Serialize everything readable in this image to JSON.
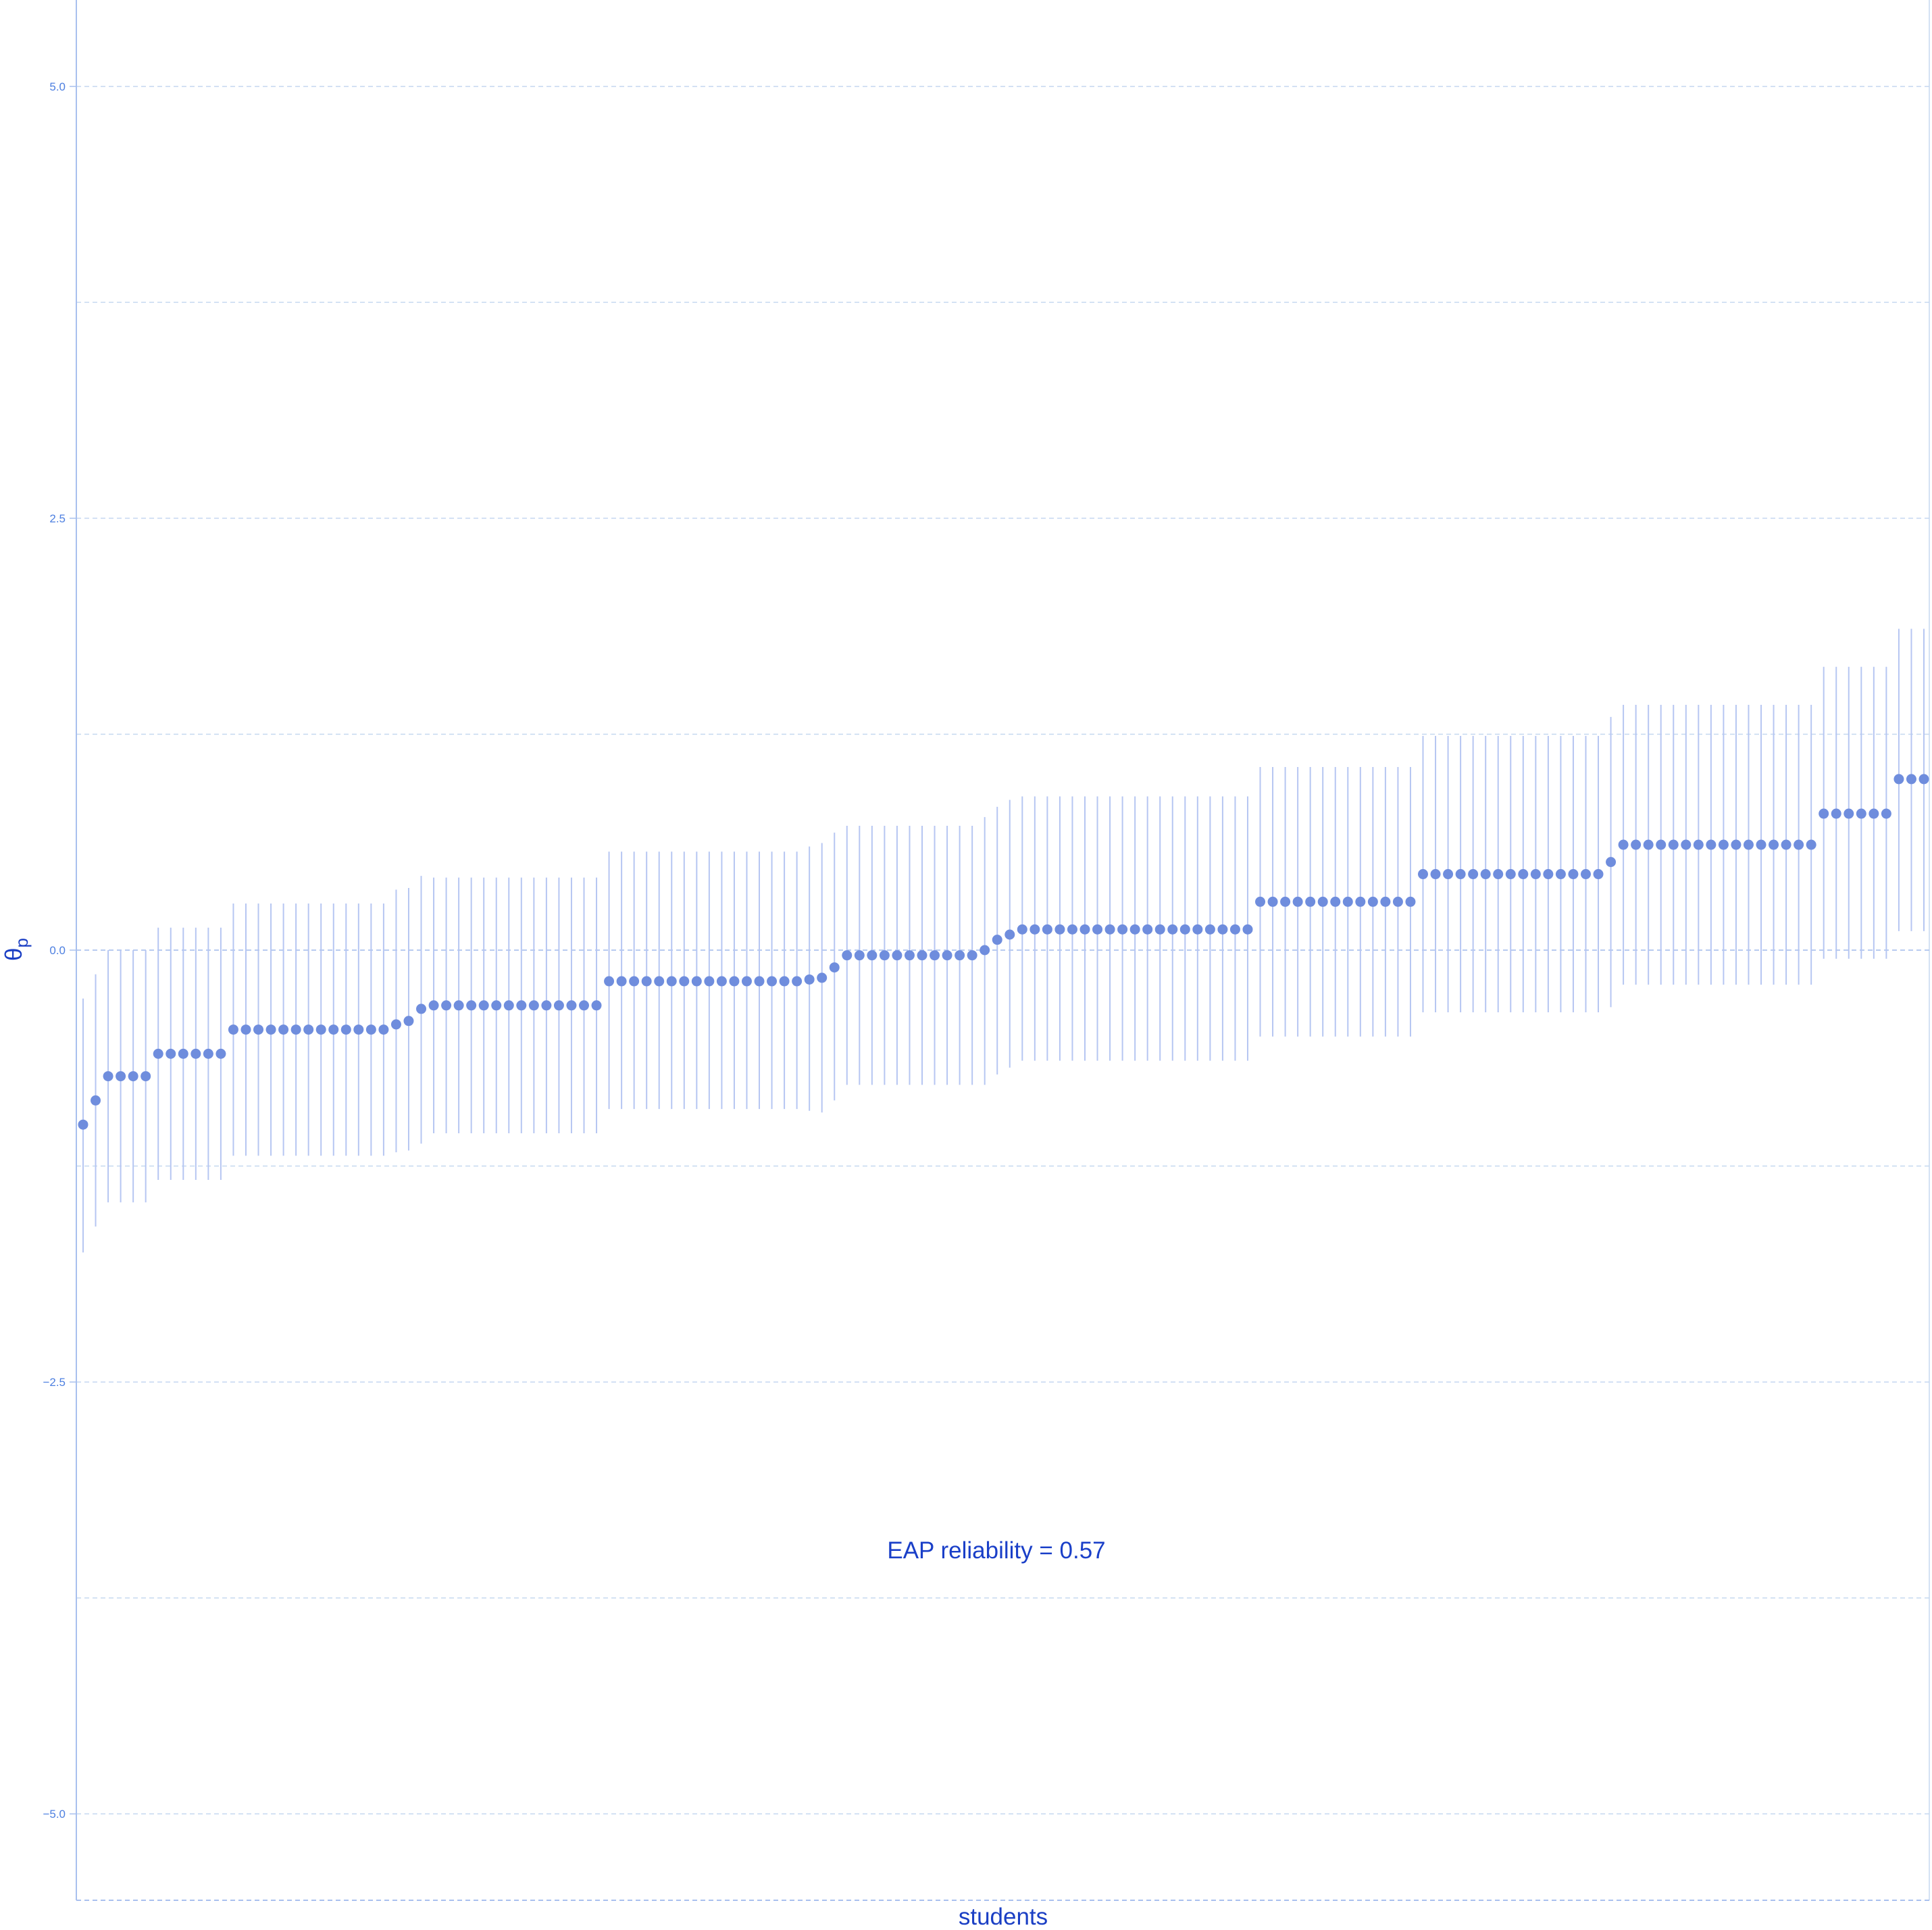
{
  "chart_data": {
    "type": "scatter",
    "xlabel": "students",
    "ylabel_base": "θ",
    "ylabel_sub": "p",
    "annotation": "EAP reliability = 0.57",
    "ylim": [
      -5.5,
      5.5
    ],
    "yticks": [
      -5.0,
      -2.5,
      0.0,
      2.5,
      5.0
    ],
    "ytick_labels": [
      "−5.0",
      "−2.5",
      "0.0",
      "2.5",
      "5.0"
    ],
    "grid": true,
    "colors": {
      "point": "#6f8ddd",
      "errorbar": "#b6c6f2",
      "grid": "#c5d8f0",
      "axis": "#a9c0ee",
      "tick_text": "#4d7fe0",
      "title_text": "#1b3fc4",
      "annotation_text": "#1a3fc8"
    },
    "groups": [
      {
        "count": 1,
        "theta": -1.01,
        "lower": -1.75,
        "upper": -0.28
      },
      {
        "count": 1,
        "theta": -0.87,
        "lower": -1.6,
        "upper": -0.14
      },
      {
        "count": 4,
        "theta": -0.73,
        "lower": -1.46,
        "upper": 0.0
      },
      {
        "count": 6,
        "theta": -0.6,
        "lower": -1.33,
        "upper": 0.13
      },
      {
        "count": 13,
        "theta": -0.46,
        "lower": -1.19,
        "upper": 0.27
      },
      {
        "count": 1,
        "theta": -0.43,
        "lower": -1.17,
        "upper": 0.35
      },
      {
        "count": 1,
        "theta": -0.41,
        "lower": -1.16,
        "upper": 0.36
      },
      {
        "count": 1,
        "theta": -0.34,
        "lower": -1.12,
        "upper": 0.43
      },
      {
        "count": 14,
        "theta": -0.32,
        "lower": -1.06,
        "upper": 0.42
      },
      {
        "count": 16,
        "theta": -0.18,
        "lower": -0.92,
        "upper": 0.57
      },
      {
        "count": 1,
        "theta": -0.17,
        "lower": -0.93,
        "upper": 0.6
      },
      {
        "count": 1,
        "theta": -0.16,
        "lower": -0.94,
        "upper": 0.62
      },
      {
        "count": 1,
        "theta": -0.1,
        "lower": -0.87,
        "upper": 0.68
      },
      {
        "count": 11,
        "theta": -0.03,
        "lower": -0.78,
        "upper": 0.72
      },
      {
        "count": 1,
        "theta": 0.0,
        "lower": -0.78,
        "upper": 0.77
      },
      {
        "count": 1,
        "theta": 0.06,
        "lower": -0.72,
        "upper": 0.83
      },
      {
        "count": 1,
        "theta": 0.09,
        "lower": -0.68,
        "upper": 0.87
      },
      {
        "count": 19,
        "theta": 0.12,
        "lower": -0.64,
        "upper": 0.89
      },
      {
        "count": 13,
        "theta": 0.28,
        "lower": -0.5,
        "upper": 1.06
      },
      {
        "count": 15,
        "theta": 0.44,
        "lower": -0.36,
        "upper": 1.24
      },
      {
        "count": 1,
        "theta": 0.51,
        "lower": -0.33,
        "upper": 1.35
      },
      {
        "count": 16,
        "theta": 0.61,
        "lower": -0.2,
        "upper": 1.42
      },
      {
        "count": 6,
        "theta": 0.79,
        "lower": -0.05,
        "upper": 1.64
      },
      {
        "count": 3,
        "theta": 0.99,
        "lower": 0.11,
        "upper": 1.86
      }
    ]
  }
}
